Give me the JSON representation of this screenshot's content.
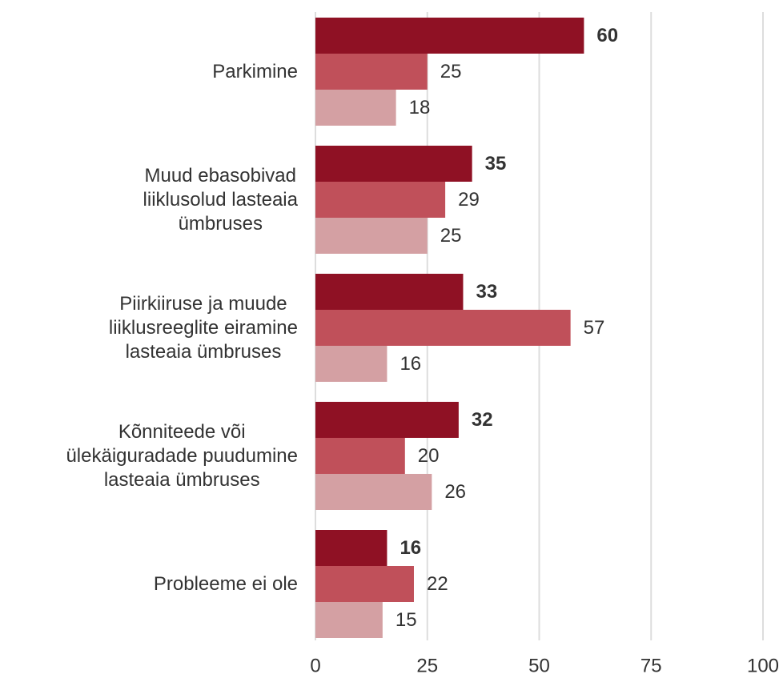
{
  "chart_data": {
    "type": "bar",
    "orientation": "horizontal",
    "categories": [
      "Parkimine",
      "Muud ebasobivad\nliiklusolud lasteaia\nümbruses",
      "Piirkiiruse ja muude\nliiklusreeglite eiramine\nlasteaia ümbruses",
      "Kõnniteede või\nülekäiguradade puudumine\nlasteaia ümbruses",
      "Probleeme ei ole"
    ],
    "series": [
      {
        "color": "#8f1124",
        "values": [
          60,
          35,
          33,
          32,
          16
        ]
      },
      {
        "color": "#c0505a",
        "values": [
          25,
          29,
          57,
          20,
          22
        ]
      },
      {
        "color": "#d4a0a3",
        "values": [
          18,
          25,
          16,
          26,
          15
        ]
      }
    ],
    "xlim": [
      0,
      100
    ],
    "xticks": [
      0,
      25,
      50,
      75,
      100
    ],
    "grid": true
  }
}
